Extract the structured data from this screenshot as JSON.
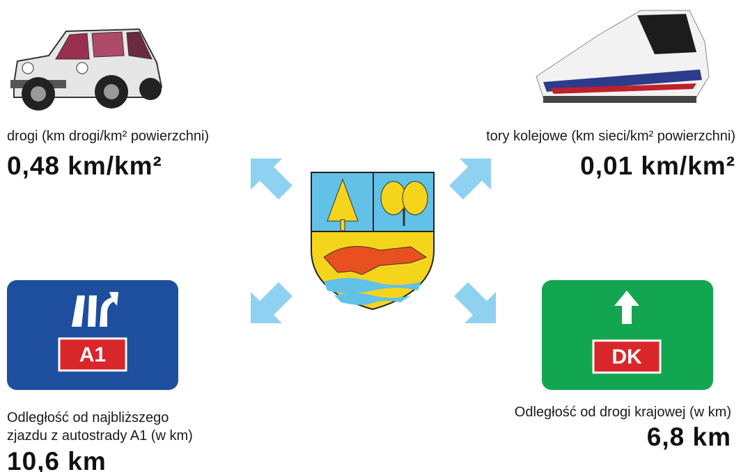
{
  "road": {
    "label": "drogi (km drogi/km² powierzchni)",
    "value": "0,48 km/km²"
  },
  "rail": {
    "label": "tory kolejowe (km sieci/km² powierzchni)",
    "value": "0,01 km/km²"
  },
  "motorway": {
    "sign": "A1",
    "label_lines": [
      "Odległość od najbliższego",
      "zjazdu z autostrady A1 (w km)"
    ],
    "value": "10,6 km"
  },
  "national_road": {
    "sign": "DK",
    "label": "Odległość od drogi krajowej (w km)",
    "value": "6,8 km"
  }
}
